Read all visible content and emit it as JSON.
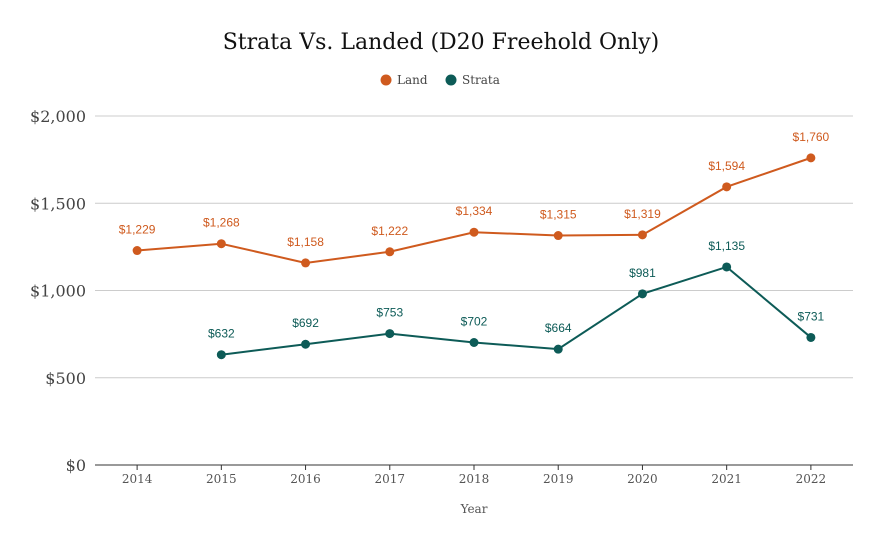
{
  "chart_data": {
    "type": "line",
    "title": "Strata Vs. Landed (D20 Freehold Only)",
    "xlabel": "Year",
    "ylabel": "",
    "ylim": [
      0,
      2000
    ],
    "yticks": [
      0,
      500,
      1000,
      1500,
      2000
    ],
    "ytick_labels": [
      "$0",
      "$500",
      "$1,000",
      "$1,500",
      "$2,000"
    ],
    "grid": true,
    "legend_position": "top-center",
    "categories": [
      "2014",
      "2015",
      "2016",
      "2017",
      "2018",
      "2019",
      "2020",
      "2021",
      "2022"
    ],
    "series": [
      {
        "name": "Land",
        "color": "#cf5a1e",
        "values": [
          1229,
          1268,
          1158,
          1222,
          1334,
          1315,
          1319,
          1594,
          1760
        ],
        "labels": [
          "$1,229",
          "$1,268",
          "$1,158",
          "$1,222",
          "$1,334",
          "$1,315",
          "$1,319",
          "$1,594",
          "$1,760"
        ]
      },
      {
        "name": "Strata",
        "color": "#0d5b57",
        "values": [
          null,
          632,
          692,
          753,
          702,
          664,
          981,
          1135,
          731
        ],
        "labels": [
          null,
          "$632",
          "$692",
          "$753",
          "$702",
          "$664",
          "$981",
          "$1,135",
          "$731"
        ]
      }
    ]
  }
}
